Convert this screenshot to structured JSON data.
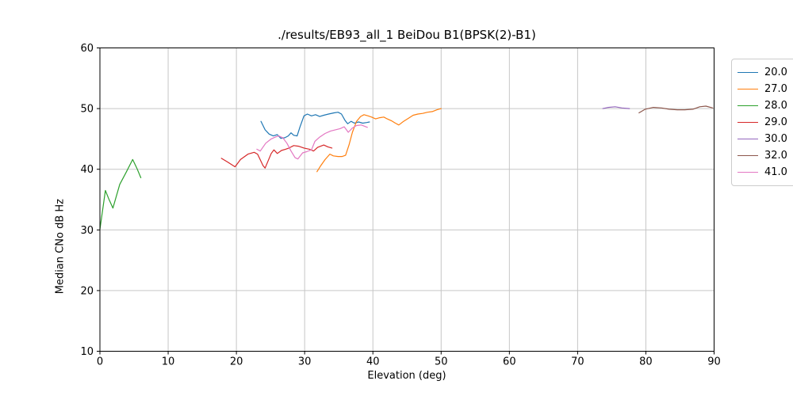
{
  "figure": {
    "background": "#ffffff",
    "spine_color": "#000000",
    "grid_color": "#c6c6c6",
    "tick_color": "#000000",
    "text_color": "#000000"
  },
  "chart_data": {
    "type": "line",
    "title": "./results/EB93_all_1 BeiDou B1(BPSK(2)-B1)",
    "xlabel": "Elevation (deg)",
    "ylabel": "Median CNo dB Hz",
    "xlim": [
      0,
      90
    ],
    "ylim": [
      10,
      60
    ],
    "xticks": [
      0,
      10,
      20,
      30,
      40,
      50,
      60,
      70,
      80,
      90
    ],
    "yticks": [
      10,
      20,
      30,
      40,
      50,
      60
    ],
    "grid": true,
    "legend_position": "outside-upper-right",
    "series": [
      {
        "label": "20.0",
        "color": "#1f77b4",
        "points": [
          [
            23.6,
            47.9
          ],
          [
            24.2,
            46.5
          ],
          [
            24.8,
            45.8
          ],
          [
            25.4,
            45.5
          ],
          [
            26.0,
            45.7
          ],
          [
            26.5,
            45.1
          ],
          [
            27.1,
            45.2
          ],
          [
            27.6,
            45.5
          ],
          [
            28.0,
            46.0
          ],
          [
            28.4,
            45.6
          ],
          [
            28.9,
            45.5
          ],
          [
            29.3,
            46.9
          ],
          [
            29.9,
            48.8
          ],
          [
            30.4,
            49.1
          ],
          [
            31.0,
            48.8
          ],
          [
            31.6,
            49.0
          ],
          [
            32.2,
            48.7
          ],
          [
            32.8,
            48.9
          ],
          [
            33.5,
            49.1
          ],
          [
            34.3,
            49.3
          ],
          [
            34.9,
            49.4
          ],
          [
            35.4,
            49.1
          ],
          [
            35.9,
            48.1
          ],
          [
            36.3,
            47.5
          ],
          [
            36.8,
            47.9
          ],
          [
            37.3,
            47.6
          ],
          [
            37.9,
            47.8
          ],
          [
            38.5,
            47.6
          ],
          [
            39.1,
            47.7
          ],
          [
            39.5,
            47.8
          ]
        ]
      },
      {
        "label": "27.0",
        "color": "#ff7f0e",
        "points": [
          [
            31.8,
            39.6
          ],
          [
            32.3,
            40.5
          ],
          [
            33.0,
            41.6
          ],
          [
            33.7,
            42.5
          ],
          [
            34.2,
            42.2
          ],
          [
            34.9,
            42.1
          ],
          [
            35.5,
            42.1
          ],
          [
            36.0,
            42.3
          ],
          [
            36.5,
            44.0
          ],
          [
            37.0,
            46.1
          ],
          [
            37.6,
            47.9
          ],
          [
            38.2,
            48.7
          ],
          [
            38.7,
            49.0
          ],
          [
            39.3,
            48.8
          ],
          [
            39.8,
            48.6
          ],
          [
            40.4,
            48.3
          ],
          [
            41.0,
            48.5
          ],
          [
            41.6,
            48.6
          ],
          [
            42.1,
            48.3
          ],
          [
            42.7,
            48.0
          ],
          [
            43.3,
            47.6
          ],
          [
            43.8,
            47.3
          ],
          [
            44.5,
            47.9
          ],
          [
            45.2,
            48.4
          ],
          [
            45.9,
            48.9
          ],
          [
            46.6,
            49.1
          ],
          [
            47.3,
            49.2
          ],
          [
            48.0,
            49.4
          ],
          [
            48.7,
            49.5
          ],
          [
            49.4,
            49.8
          ],
          [
            50.0,
            50.0
          ]
        ]
      },
      {
        "label": "28.0",
        "color": "#2ca02c",
        "points": [
          [
            0.0,
            30.1
          ],
          [
            0.8,
            36.5
          ],
          [
            1.3,
            35.1
          ],
          [
            1.9,
            33.6
          ],
          [
            2.9,
            37.5
          ],
          [
            3.8,
            39.4
          ],
          [
            4.8,
            41.6
          ],
          [
            5.4,
            40.2
          ],
          [
            6.0,
            38.6
          ]
        ]
      },
      {
        "label": "29.0",
        "color": "#d62728",
        "points": [
          [
            17.8,
            41.8
          ],
          [
            18.7,
            41.2
          ],
          [
            19.8,
            40.4
          ],
          [
            20.6,
            41.6
          ],
          [
            21.7,
            42.5
          ],
          [
            22.6,
            42.8
          ],
          [
            23.1,
            42.5
          ],
          [
            23.9,
            40.6
          ],
          [
            24.2,
            40.2
          ],
          [
            25.1,
            42.6
          ],
          [
            25.5,
            43.2
          ],
          [
            26.0,
            42.6
          ],
          [
            26.6,
            43.1
          ],
          [
            27.2,
            43.3
          ],
          [
            27.7,
            43.5
          ],
          [
            28.4,
            43.9
          ],
          [
            29.1,
            43.8
          ],
          [
            29.9,
            43.5
          ],
          [
            30.7,
            43.3
          ],
          [
            31.3,
            43.0
          ],
          [
            31.9,
            43.6
          ],
          [
            32.8,
            44.0
          ],
          [
            33.4,
            43.7
          ],
          [
            34.0,
            43.5
          ]
        ]
      },
      {
        "label": "30.0",
        "color": "#9467bd",
        "points": [
          [
            73.7,
            50.0
          ],
          [
            74.5,
            50.2
          ],
          [
            75.5,
            50.3
          ],
          [
            76.5,
            50.1
          ],
          [
            77.6,
            50.0
          ]
        ]
      },
      {
        "label": "32.0",
        "color": "#8c564b",
        "points": [
          [
            79.0,
            49.3
          ],
          [
            79.9,
            49.9
          ],
          [
            81.1,
            50.2
          ],
          [
            82.3,
            50.1
          ],
          [
            83.4,
            49.9
          ],
          [
            84.6,
            49.8
          ],
          [
            85.7,
            49.8
          ],
          [
            86.9,
            49.9
          ],
          [
            87.9,
            50.3
          ],
          [
            88.8,
            50.4
          ],
          [
            89.8,
            50.1
          ]
        ]
      },
      {
        "label": "41.0",
        "color": "#e377c2",
        "points": [
          [
            23.0,
            43.3
          ],
          [
            23.5,
            43.0
          ],
          [
            24.3,
            44.3
          ],
          [
            25.1,
            45.0
          ],
          [
            25.7,
            45.3
          ],
          [
            26.2,
            45.5
          ],
          [
            26.8,
            45.2
          ],
          [
            27.4,
            44.3
          ],
          [
            28.0,
            43.0
          ],
          [
            28.6,
            41.9
          ],
          [
            29.0,
            41.7
          ],
          [
            29.7,
            42.7
          ],
          [
            30.3,
            42.9
          ],
          [
            31.0,
            43.2
          ],
          [
            31.5,
            44.6
          ],
          [
            32.2,
            45.3
          ],
          [
            33.0,
            45.9
          ],
          [
            33.8,
            46.3
          ],
          [
            34.5,
            46.5
          ],
          [
            35.2,
            46.7
          ],
          [
            35.8,
            47.0
          ],
          [
            36.4,
            46.1
          ],
          [
            37.0,
            46.8
          ],
          [
            37.6,
            47.2
          ],
          [
            38.3,
            47.3
          ],
          [
            39.2,
            46.9
          ]
        ]
      }
    ]
  }
}
